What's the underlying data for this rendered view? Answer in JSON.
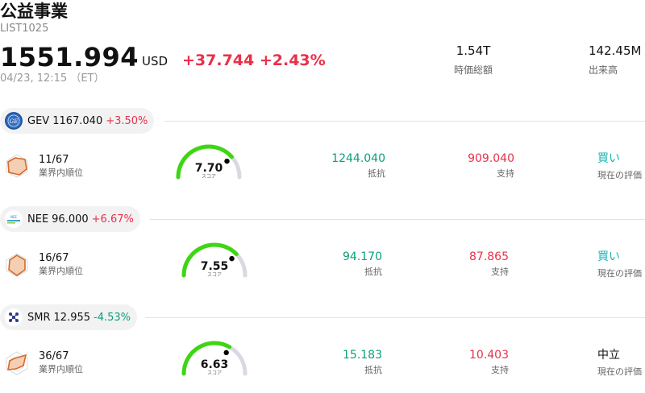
{
  "header": {
    "title": "公益事業",
    "ticker": "LIST1025",
    "price": "1551.994",
    "currency": "USD",
    "change": "+37.744 +2.43%",
    "timestamp": "04/23, 12:15 （ET）",
    "stats": [
      {
        "value": "1.54T",
        "label": "時価総額"
      },
      {
        "value": "142.45M",
        "label": "出来高"
      }
    ]
  },
  "stocks": [
    {
      "symbol": "GEV",
      "price": "1167.040",
      "change": "+3.50%",
      "direction": "up",
      "logo": "ge-logo-icon",
      "rank": "11/67",
      "rank_label": "業界内順位",
      "score": 7.7,
      "score_text": "7.70",
      "score_label": "スコア",
      "resistance": "1244.040",
      "resistance_label": "抵抗",
      "support": "909.040",
      "support_label": "支持",
      "rating": "買い",
      "rating_label": "現在の評価",
      "rating_color": "#19b5b5"
    },
    {
      "symbol": "NEE",
      "price": "96.000",
      "change": "+6.67%",
      "direction": "up",
      "logo": "nextera-logo-icon",
      "rank": "16/67",
      "rank_label": "業界内順位",
      "score": 7.55,
      "score_text": "7.55",
      "score_label": "スコア",
      "resistance": "94.170",
      "resistance_label": "抵抗",
      "support": "87.865",
      "support_label": "支持",
      "rating": "買い",
      "rating_label": "現在の評価",
      "rating_color": "#19b5b5"
    },
    {
      "symbol": "SMR",
      "price": "12.955",
      "change": "-4.53%",
      "direction": "down",
      "logo": "nuscale-logo-icon",
      "rank": "36/67",
      "rank_label": "業界内順位",
      "score": 6.63,
      "score_text": "6.63",
      "score_label": "スコア",
      "resistance": "15.183",
      "resistance_label": "抵抗",
      "support": "10.403",
      "support_label": "支持",
      "rating": "中立",
      "rating_label": "現在の評価",
      "rating_color": "#111111"
    }
  ]
}
